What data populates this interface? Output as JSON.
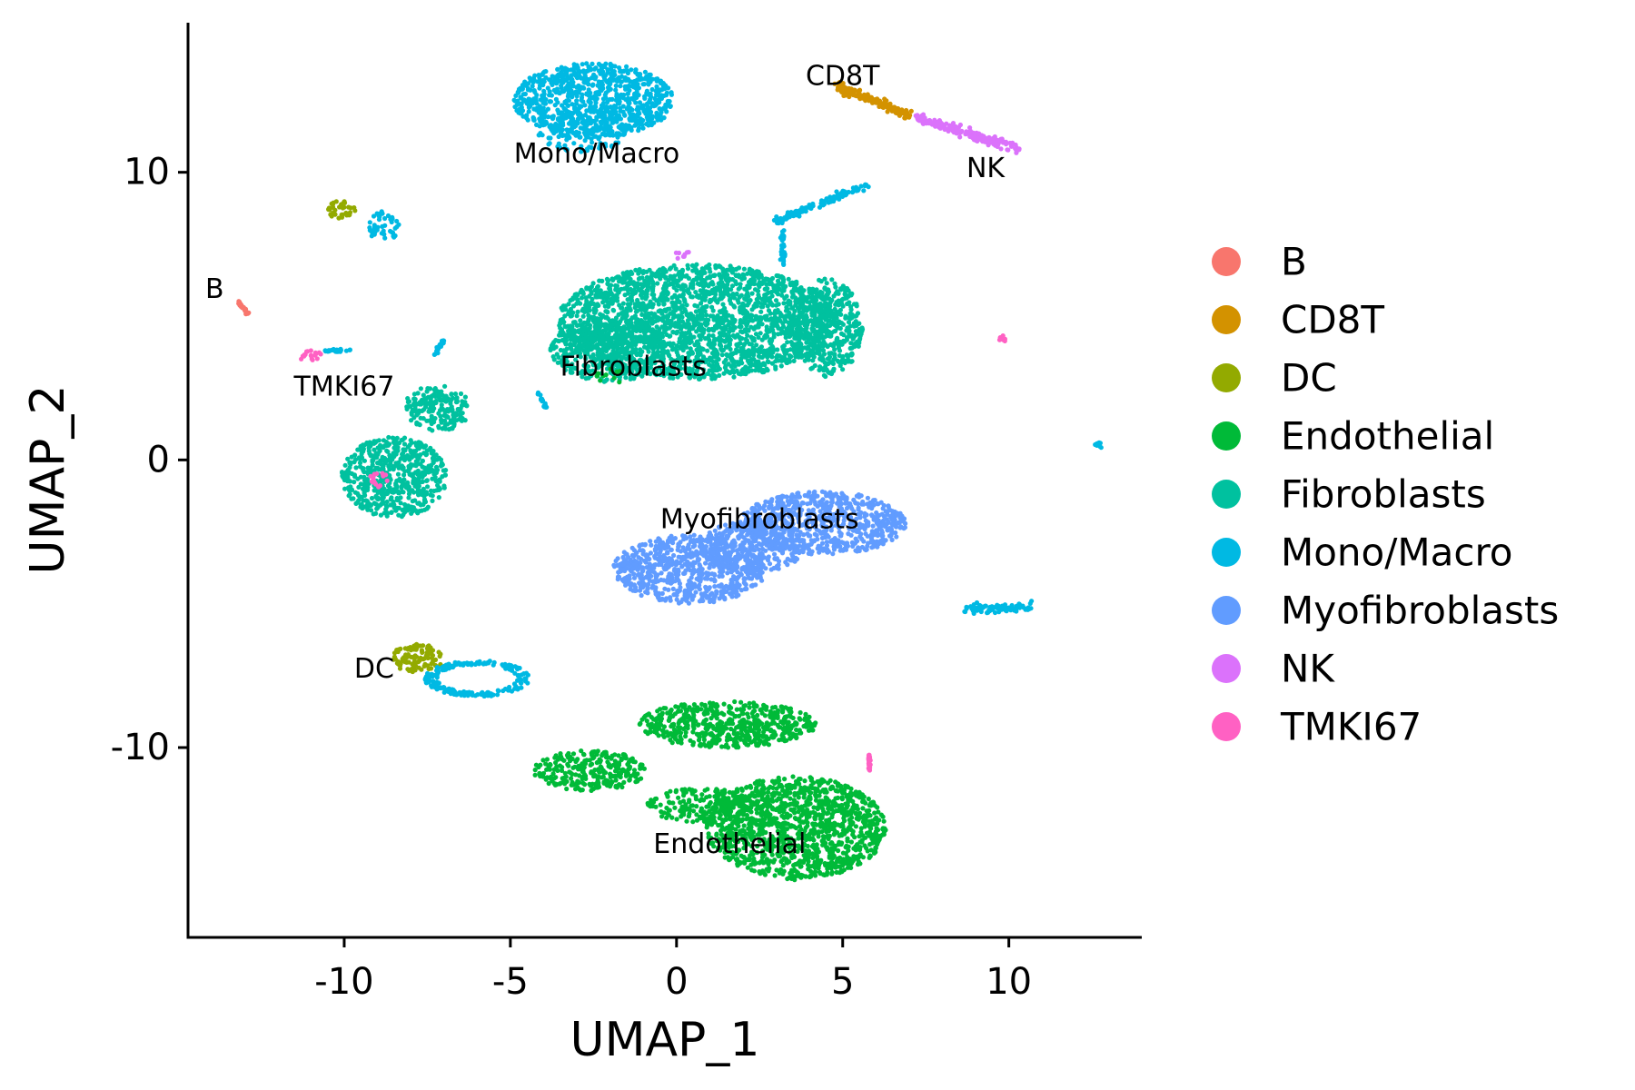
{
  "chart_data": {
    "type": "scatter",
    "xlabel": "UMAP_1",
    "ylabel": "UMAP_2",
    "xlim": [
      -14.7,
      14.0
    ],
    "ylim": [
      -16.6,
      15.2
    ],
    "xticks": [
      -10,
      -5,
      0,
      5,
      10
    ],
    "yticks": [
      -10,
      0,
      10
    ],
    "xtick_labels": [
      "-10",
      "-5",
      "0",
      "5",
      "10"
    ],
    "ytick_labels": [
      "-10",
      "0",
      "10"
    ],
    "grid": false,
    "legend_position": "right",
    "series": [
      {
        "name": "B",
        "color": "#F8766D"
      },
      {
        "name": "CD8T",
        "color": "#D39200"
      },
      {
        "name": "DC",
        "color": "#93AA00"
      },
      {
        "name": "Endothelial",
        "color": "#00BA38"
      },
      {
        "name": "Fibroblasts",
        "color": "#00C19F"
      },
      {
        "name": "Mono/Macro",
        "color": "#00B9E3"
      },
      {
        "name": "Myofibroblasts",
        "color": "#619CFF"
      },
      {
        "name": "NK",
        "color": "#DB72FB"
      },
      {
        "name": "TMKI67",
        "color": "#FF61C3"
      }
    ],
    "clusters": [
      {
        "series": "Mono/Macro",
        "shape": "ellipse",
        "cx": -2.5,
        "cy": 12.5,
        "rx": 2.4,
        "ry": 1.3,
        "density": 1.0
      },
      {
        "series": "Mono/Macro",
        "shape": "ellipse",
        "cx": -2.8,
        "cy": 11.5,
        "rx": 1.4,
        "ry": 0.8,
        "density": 0.5
      },
      {
        "series": "CD8T",
        "shape": "line",
        "x0": 4.8,
        "y0": 13.0,
        "x1": 7.0,
        "y1": 12.0,
        "spread": 0.25,
        "n": 160
      },
      {
        "series": "NK",
        "shape": "line",
        "x0": 7.2,
        "y0": 11.9,
        "x1": 10.3,
        "y1": 10.8,
        "spread": 0.22,
        "n": 200
      },
      {
        "series": "DC",
        "shape": "ellipse",
        "cx": -10.1,
        "cy": 8.7,
        "rx": 0.45,
        "ry": 0.3,
        "density": 1.0
      },
      {
        "series": "Mono/Macro",
        "shape": "ellipse",
        "cx": -8.8,
        "cy": 8.1,
        "rx": 0.45,
        "ry": 0.55,
        "density": 0.7
      },
      {
        "series": "B",
        "shape": "line",
        "x0": -13.2,
        "y0": 5.5,
        "x1": -12.9,
        "y1": 5.1,
        "spread": 0.08,
        "n": 30
      },
      {
        "series": "TMKI67",
        "shape": "ellipse",
        "cx": -11.0,
        "cy": 3.6,
        "rx": 0.35,
        "ry": 0.2,
        "density": 1.0
      },
      {
        "series": "Mono/Macro",
        "shape": "line",
        "x0": -10.6,
        "y0": 3.8,
        "x1": -9.8,
        "y1": 3.8,
        "spread": 0.06,
        "n": 25
      },
      {
        "series": "Mono/Macro",
        "shape": "line",
        "x0": -7.0,
        "y0": 4.2,
        "x1": -7.3,
        "y1": 3.6,
        "spread": 0.1,
        "n": 25
      },
      {
        "series": "Mono/Macro",
        "shape": "line",
        "x0": 3.0,
        "y0": 8.3,
        "x1": 5.8,
        "y1": 9.6,
        "spread": 0.2,
        "n": 120
      },
      {
        "series": "Mono/Macro",
        "shape": "line",
        "x0": 3.2,
        "y0": 8.0,
        "x1": 3.2,
        "y1": 6.8,
        "spread": 0.2,
        "n": 40
      },
      {
        "series": "Fibroblasts",
        "shape": "ellipse",
        "cx": 0.6,
        "cy": 4.8,
        "rx": 4.2,
        "ry": 2.0,
        "density": 1.0
      },
      {
        "series": "Fibroblasts",
        "shape": "ellipse",
        "cx": -2.0,
        "cy": 3.8,
        "rx": 1.8,
        "ry": 1.1,
        "density": 0.8
      },
      {
        "series": "Fibroblasts",
        "shape": "ellipse",
        "cx": 4.5,
        "cy": 4.6,
        "rx": 1.1,
        "ry": 1.7,
        "density": 0.9
      },
      {
        "series": "Endothelial",
        "shape": "ellipse",
        "cx": -2.0,
        "cy": 2.9,
        "rx": 0.4,
        "ry": 0.3,
        "density": 0.4
      },
      {
        "series": "NK",
        "shape": "ellipse",
        "cx": 0.2,
        "cy": 7.1,
        "rx": 0.3,
        "ry": 0.15,
        "density": 0.4
      },
      {
        "series": "Mono/Macro",
        "shape": "line",
        "x0": -4.2,
        "y0": 2.4,
        "x1": -3.9,
        "y1": 1.8,
        "spread": 0.12,
        "n": 20
      },
      {
        "series": "Fibroblasts",
        "shape": "ellipse",
        "cx": -8.5,
        "cy": -0.6,
        "rx": 1.6,
        "ry": 1.4,
        "density": 1.0
      },
      {
        "series": "Fibroblasts",
        "shape": "ellipse",
        "cx": -7.2,
        "cy": 1.8,
        "rx": 1.0,
        "ry": 0.8,
        "density": 0.9
      },
      {
        "series": "TMKI67",
        "shape": "ellipse",
        "cx": -9.0,
        "cy": -0.7,
        "rx": 0.45,
        "ry": 0.25,
        "density": 0.6
      },
      {
        "series": "Myofibroblasts",
        "shape": "ellipse",
        "cx": 4.4,
        "cy": -2.2,
        "rx": 2.5,
        "ry": 1.1,
        "density": 1.0
      },
      {
        "series": "Myofibroblasts",
        "shape": "ellipse",
        "cx": 0.4,
        "cy": -3.8,
        "rx": 2.3,
        "ry": 1.2,
        "density": 1.0
      },
      {
        "series": "Myofibroblasts",
        "shape": "ellipse",
        "cx": 2.3,
        "cy": -3.0,
        "rx": 1.6,
        "ry": 0.9,
        "density": 0.8
      },
      {
        "series": "Mono/Macro",
        "shape": "line",
        "x0": 8.7,
        "y0": -5.2,
        "x1": 10.7,
        "y1": -5.1,
        "spread": 0.25,
        "n": 90
      },
      {
        "series": "Mono/Macro",
        "shape": "ellipse",
        "cx": 12.7,
        "cy": 0.5,
        "rx": 0.12,
        "ry": 0.1,
        "density": 1.0
      },
      {
        "series": "TMKI67",
        "shape": "ellipse",
        "cx": 9.8,
        "cy": 4.2,
        "rx": 0.15,
        "ry": 0.12,
        "density": 1.0
      },
      {
        "series": "DC",
        "shape": "ellipse",
        "cx": -7.8,
        "cy": -6.9,
        "rx": 0.8,
        "ry": 0.5,
        "density": 1.0
      },
      {
        "series": "Mono/Macro",
        "shape": "ring",
        "cx": -6.0,
        "cy": -7.6,
        "rx": 1.5,
        "ry": 0.6,
        "n": 200
      },
      {
        "series": "Endothelial",
        "shape": "ellipse",
        "cx": 1.5,
        "cy": -9.2,
        "rx": 2.7,
        "ry": 0.8,
        "density": 1.0
      },
      {
        "series": "Endothelial",
        "shape": "ellipse",
        "cx": -2.6,
        "cy": -10.8,
        "rx": 1.7,
        "ry": 0.7,
        "density": 0.9
      },
      {
        "series": "Endothelial",
        "shape": "ellipse",
        "cx": 3.6,
        "cy": -12.8,
        "rx": 2.7,
        "ry": 1.8,
        "density": 1.0
      },
      {
        "series": "Endothelial",
        "shape": "ellipse",
        "cx": 0.7,
        "cy": -12.0,
        "rx": 1.6,
        "ry": 0.6,
        "density": 0.7
      },
      {
        "series": "TMKI67",
        "shape": "line",
        "x0": 5.8,
        "y0": -10.2,
        "x1": 5.8,
        "y1": -10.8,
        "spread": 0.08,
        "n": 25
      }
    ],
    "annotations": [
      {
        "text": "Mono/Macro",
        "x": -2.4,
        "y": 10.6
      },
      {
        "text": "CD8T",
        "x": 5.0,
        "y": 13.3
      },
      {
        "text": "NK",
        "x": 9.3,
        "y": 10.1
      },
      {
        "text": "B",
        "x": -13.9,
        "y": 5.9
      },
      {
        "text": "TMKI67",
        "x": -10.0,
        "y": 2.5
      },
      {
        "text": "Fibroblasts",
        "x": -1.3,
        "y": 3.2
      },
      {
        "text": "Myofibroblasts",
        "x": 2.5,
        "y": -2.1
      },
      {
        "text": "DC",
        "x": -9.1,
        "y": -7.3
      },
      {
        "text": "Endothelial",
        "x": 1.6,
        "y": -13.4
      }
    ]
  }
}
